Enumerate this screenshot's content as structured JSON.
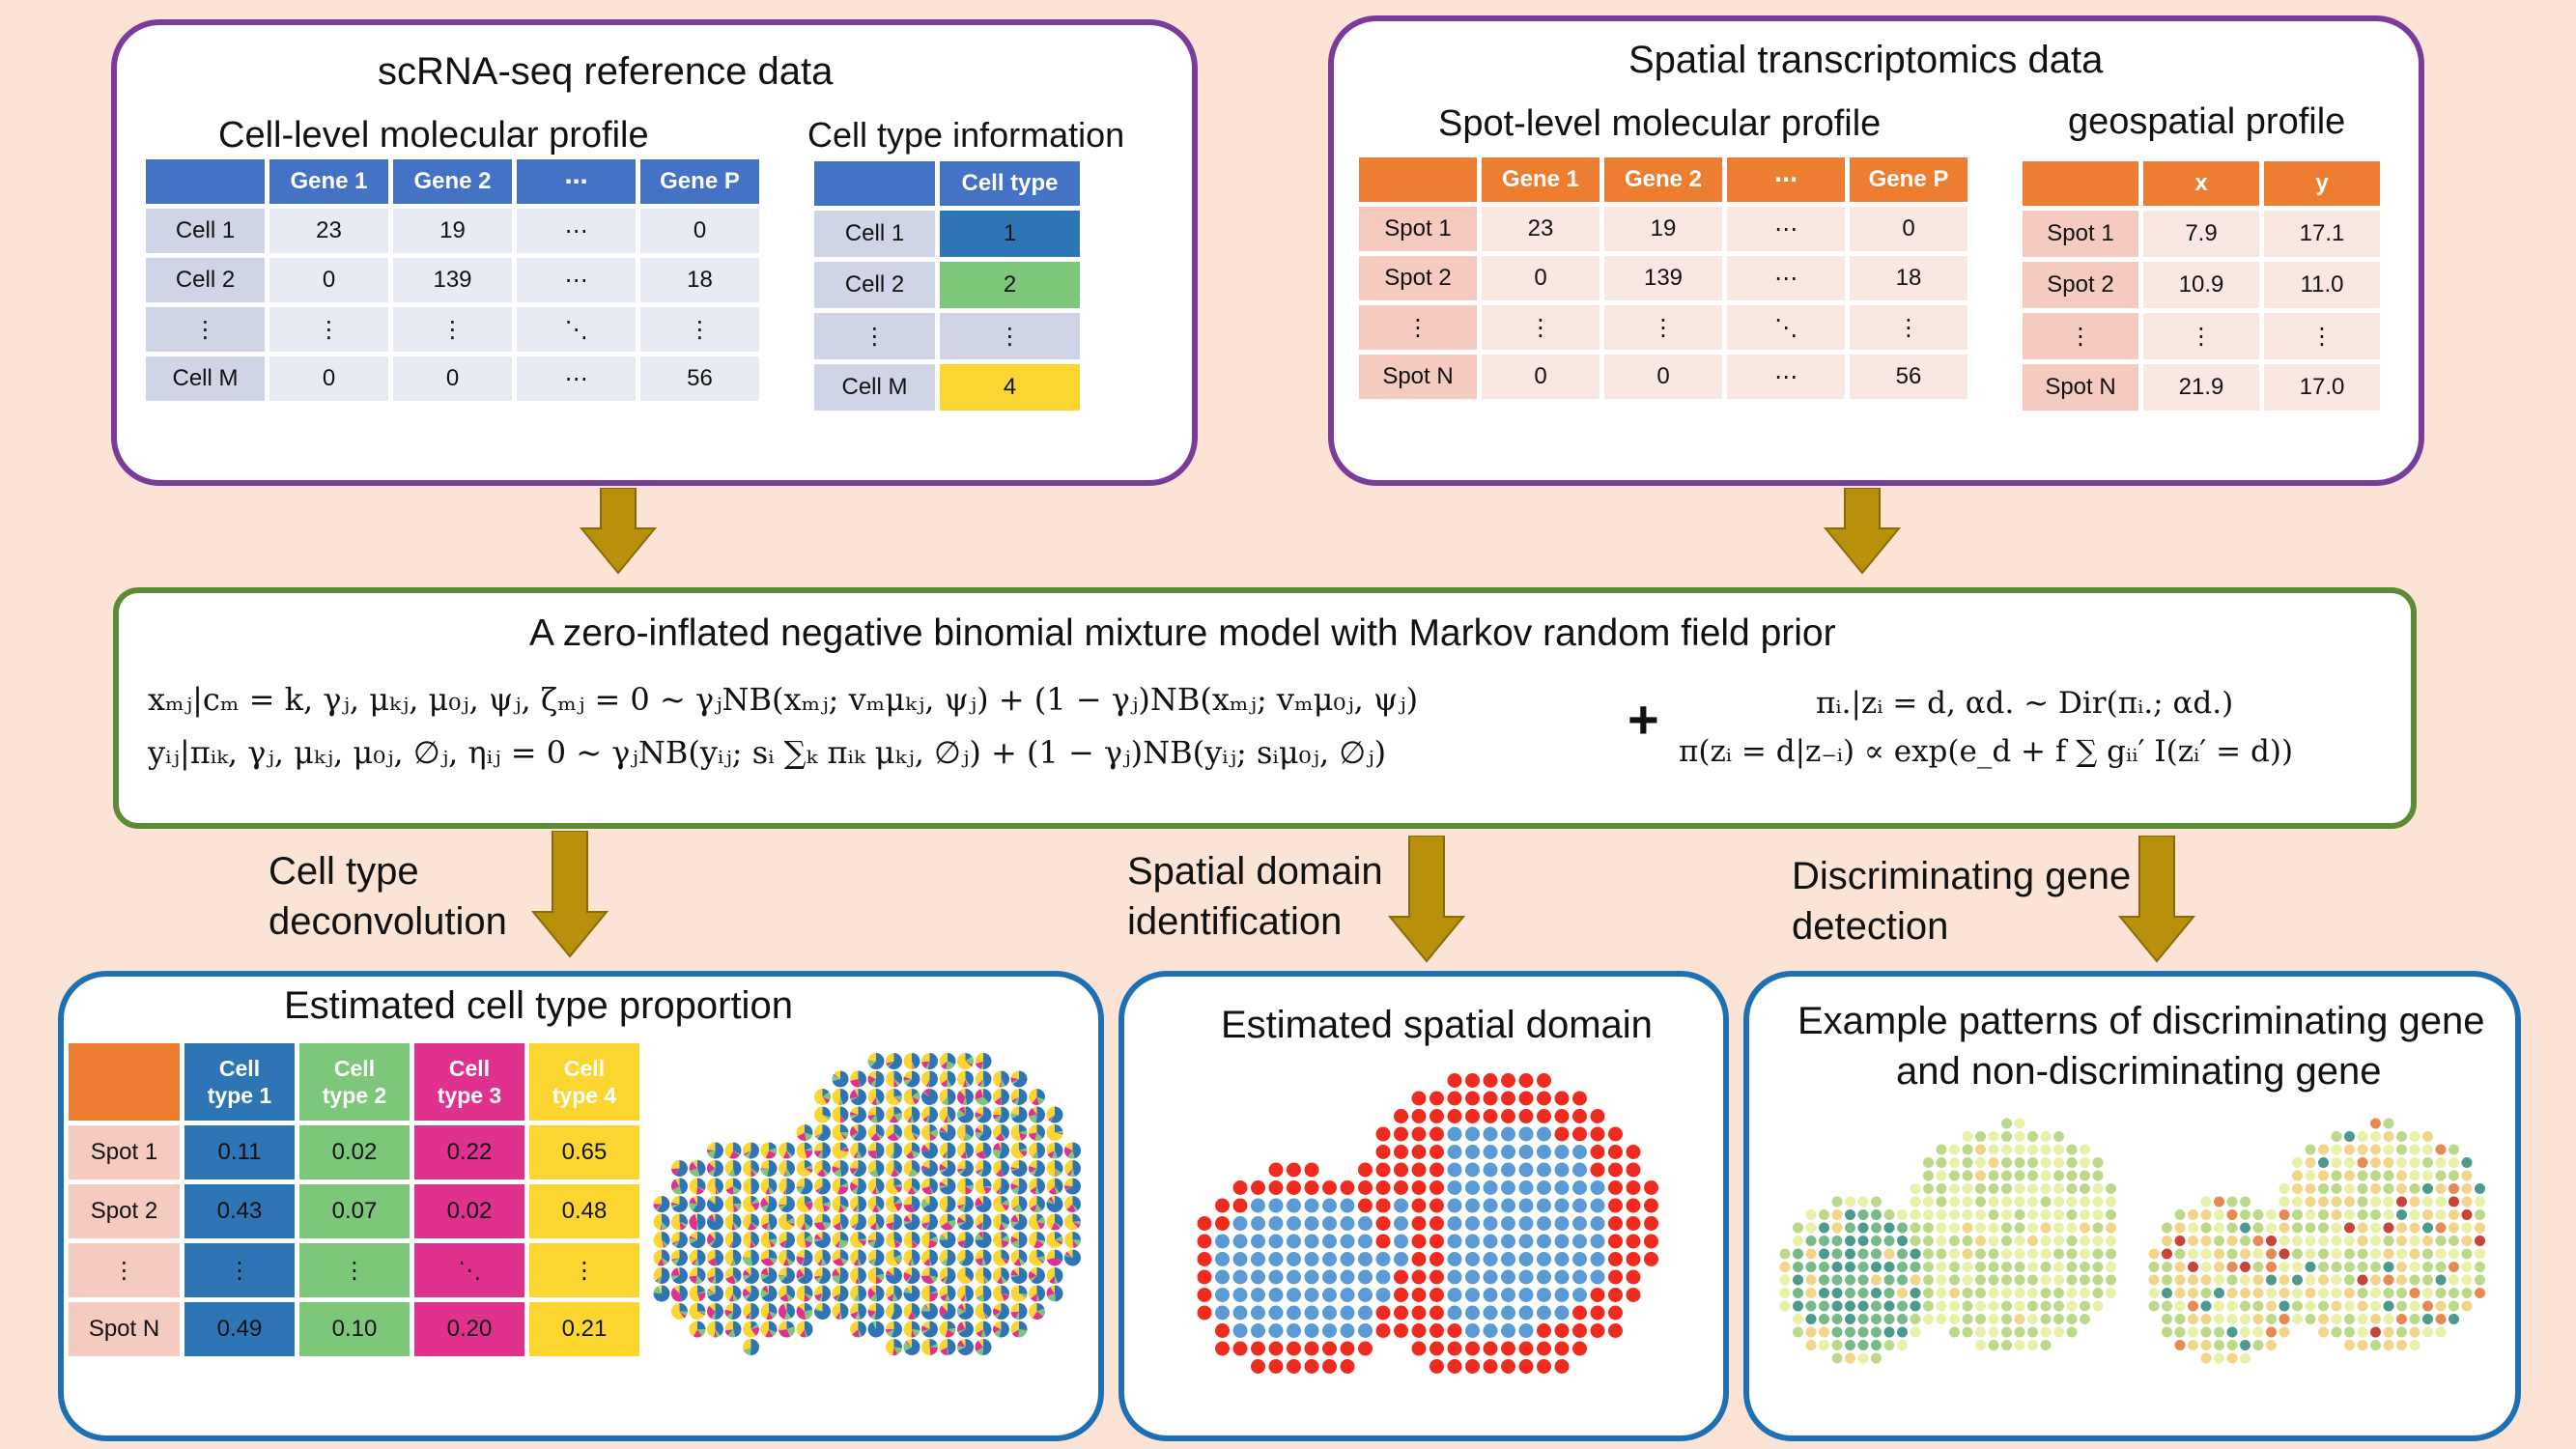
{
  "sc": {
    "title": "scRNA-seq reference data",
    "profile_title": "Cell-level molecular profile",
    "info_title": "Cell type information",
    "headers": [
      "Gene 1",
      "Gene 2",
      "⋯",
      "Gene P"
    ],
    "rows": [
      {
        "label": "Cell 1",
        "values": [
          "23",
          "19",
          "⋯",
          "0"
        ]
      },
      {
        "label": "Cell 2",
        "values": [
          "0",
          "139",
          "⋯",
          "18"
        ]
      },
      {
        "label": "⋮",
        "values": [
          "⋮",
          "⋮",
          "⋱",
          "⋮"
        ]
      },
      {
        "label": "Cell M",
        "values": [
          "0",
          "0",
          "⋯",
          "56"
        ]
      }
    ],
    "type_header": "Cell type",
    "type_rows": [
      {
        "label": "Cell 1",
        "value": "1",
        "color": "#2e75b6"
      },
      {
        "label": "Cell 2",
        "value": "2",
        "color": "#7dc77b"
      },
      {
        "label": "⋮",
        "value": "⋮",
        "color": "#cfd5e6"
      },
      {
        "label": "Cell M",
        "value": "4",
        "color": "#fbd631"
      }
    ]
  },
  "st": {
    "title": "Spatial transcriptomics data",
    "profile_title": "Spot-level molecular profile",
    "geo_title": "geospatial profile",
    "headers": [
      "Gene 1",
      "Gene 2",
      "⋯",
      "Gene P"
    ],
    "rows": [
      {
        "label": "Spot 1",
        "values": [
          "23",
          "19",
          "⋯",
          "0"
        ]
      },
      {
        "label": "Spot 2",
        "values": [
          "0",
          "139",
          "⋯",
          "18"
        ]
      },
      {
        "label": "⋮",
        "values": [
          "⋮",
          "⋮",
          "⋱",
          "⋮"
        ]
      },
      {
        "label": "Spot N",
        "values": [
          "0",
          "0",
          "⋯",
          "56"
        ]
      }
    ],
    "geo_headers": [
      "x",
      "y"
    ],
    "geo_rows": [
      {
        "label": "Spot 1",
        "values": [
          "7.9",
          "17.1"
        ]
      },
      {
        "label": "Spot 2",
        "values": [
          "10.9",
          "11.0"
        ]
      },
      {
        "label": "⋮",
        "values": [
          "⋮",
          "⋮"
        ]
      },
      {
        "label": "Spot N",
        "values": [
          "21.9",
          "17.0"
        ]
      }
    ]
  },
  "model": {
    "title": "A zero-inflated negative binomial mixture model with Markov random field prior",
    "eq1": "xₘⱼ|cₘ = k, γⱼ, μₖⱼ, μ₀ⱼ, ψⱼ, ζₘⱼ = 0 ~ γⱼNB(xₘⱼ; vₘμₖⱼ, ψⱼ) + (1 − γⱼ)NB(xₘⱼ; vₘμ₀ⱼ, ψⱼ)",
    "eq2": "yᵢⱼ|πᵢₖ, γⱼ, μₖⱼ, μ₀ⱼ, ∅ⱼ, ηᵢⱼ = 0 ~ γⱼNB(yᵢⱼ; sᵢ ∑ₖ πᵢₖ μₖⱼ, ∅ⱼ) + (1 − γⱼ)NB(yᵢⱼ; sᵢμ₀ⱼ, ∅ⱼ)",
    "plus": "+",
    "eq3": "πᵢ.|zᵢ = d, αd. ~ Dir(πᵢ.; αd.)",
    "eq4": "π(zᵢ = d|z₋ᵢ) ∝ exp(e_d + f ∑ gᵢᵢ′ I(zᵢ′ = d))"
  },
  "labels": {
    "deconv": [
      "Cell type",
      "deconvolution"
    ],
    "domain": [
      "Spatial domain",
      "identification"
    ],
    "gene": [
      "Discriminating gene",
      "detection"
    ]
  },
  "prop": {
    "title": "Estimated cell type proportion",
    "headers": [
      "Cell type 1",
      "Cell type 2",
      "Cell type 3",
      "Cell type 4"
    ],
    "header_lines": [
      [
        "Cell",
        "type 1"
      ],
      [
        "Cell",
        "type 2"
      ],
      [
        "Cell",
        "type 3"
      ],
      [
        "Cell",
        "type 4"
      ]
    ],
    "colors": [
      "#2e75b6",
      "#7dc77b",
      "#e0318f",
      "#fbd631"
    ],
    "rows": [
      {
        "label": "Spot 1",
        "values": [
          "0.11",
          "0.02",
          "0.22",
          "0.65"
        ]
      },
      {
        "label": "Spot 2",
        "values": [
          "0.43",
          "0.07",
          "0.02",
          "0.48"
        ]
      },
      {
        "label": "⋮",
        "values": [
          "⋮",
          "⋮",
          "⋱",
          "⋮"
        ]
      },
      {
        "label": "Spot N",
        "values": [
          "0.49",
          "0.10",
          "0.20",
          "0.21"
        ]
      }
    ]
  },
  "domain": {
    "title": "Estimated spatial domain",
    "colors": [
      "#ef2b1f",
      "#5b9bd5"
    ]
  },
  "gene": {
    "title_lines": [
      "Example patterns of discriminating gene",
      "and non-discriminating gene"
    ],
    "colors": [
      "#4c9a8e",
      "#78b98a",
      "#bcd98a",
      "#e9f0a7",
      "#f3d58a",
      "#e68a52",
      "#c8433a"
    ]
  }
}
